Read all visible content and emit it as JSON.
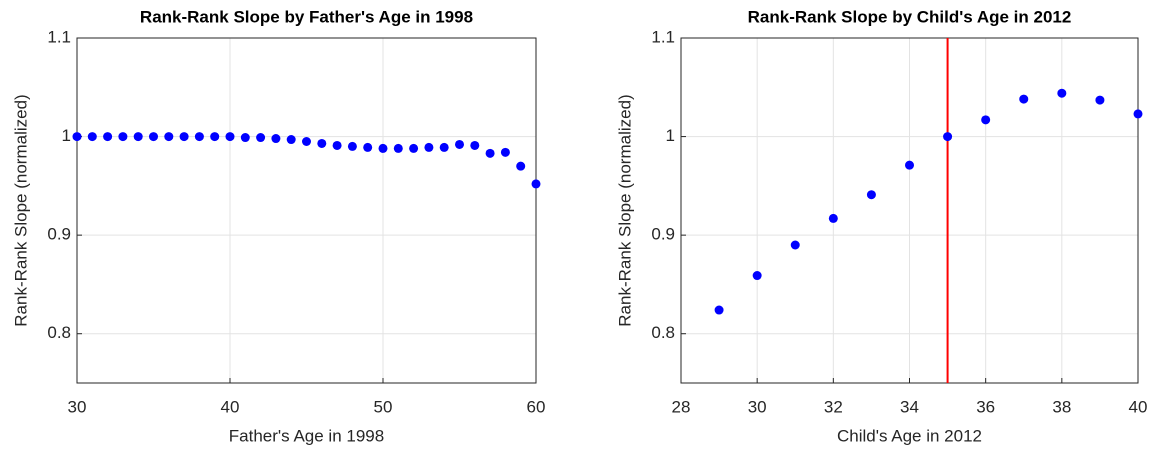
{
  "chart_data": [
    {
      "type": "scatter",
      "title": "Rank-Rank Slope by Father's Age in 1998",
      "x_label": "Father's Age in 1998",
      "y_label": "Rank-Rank Slope (normalized)",
      "x": [
        30,
        31,
        32,
        33,
        34,
        35,
        36,
        37,
        38,
        39,
        40,
        41,
        42,
        43,
        44,
        45,
        46,
        47,
        48,
        49,
        50,
        51,
        52,
        53,
        54,
        55,
        56,
        57,
        58,
        59,
        60
      ],
      "series": [
        {
          "color": "#0000ff",
          "values": [
            1.0,
            1.0,
            1.0,
            1.0,
            1.0,
            1.0,
            1.0,
            1.0,
            1.0,
            1.0,
            1.0,
            0.999,
            0.999,
            0.998,
            0.997,
            0.995,
            0.993,
            0.991,
            0.99,
            0.989,
            0.988,
            0.988,
            0.988,
            0.989,
            0.989,
            0.992,
            0.991,
            0.983,
            0.984,
            0.97,
            0.952
          ]
        }
      ],
      "xlim": [
        30,
        60
      ],
      "xticks": [
        30,
        40,
        50,
        60
      ],
      "ylim": [
        0.75,
        1.1
      ],
      "yticks": [
        0.8,
        0.9,
        1,
        1.1
      ],
      "grid": true
    },
    {
      "type": "scatter",
      "title": "Rank-Rank Slope by Child's Age in 2012",
      "x_label": "Child's Age in 2012",
      "y_label": "Rank-Rank Slope (normalized)",
      "x": [
        29,
        30,
        31,
        32,
        33,
        34,
        35,
        36,
        37,
        38,
        39,
        40
      ],
      "series": [
        {
          "color": "#0000ff",
          "values": [
            0.824,
            0.859,
            0.89,
            0.917,
            0.941,
            0.971,
            1.0,
            1.017,
            1.038,
            1.044,
            1.037,
            1.023
          ]
        }
      ],
      "vline": {
        "x": 35,
        "color": "#ff0000"
      },
      "xlim": [
        28,
        40
      ],
      "xticks": [
        28,
        30,
        32,
        34,
        36,
        38,
        40
      ],
      "ylim": [
        0.75,
        1.1
      ],
      "yticks": [
        0.8,
        0.9,
        1,
        1.1
      ],
      "grid": true
    }
  ]
}
